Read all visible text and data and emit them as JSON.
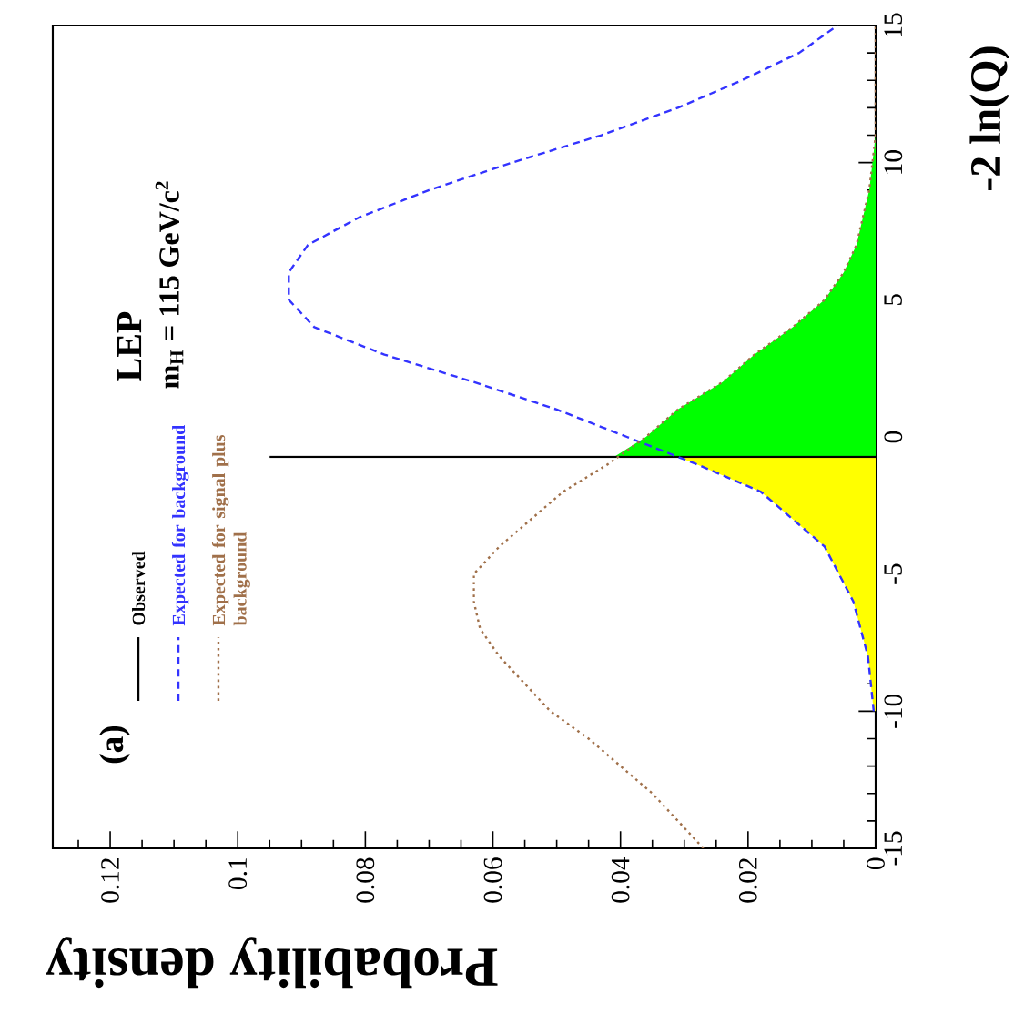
{
  "chart_data": {
    "type": "line",
    "orientation": "horizontal",
    "xlabel": "Probability density",
    "ylabel": "-2 ln(Q)",
    "annotations": [
      "(a)",
      "LEP",
      "m$_{H}$ = 115 GeV/c$^{2}$"
    ],
    "xlim": [
      0.129,
      0
    ],
    "ylim": [
      -15,
      15
    ],
    "xticks": [
      0,
      0.02,
      0.04,
      0.06,
      0.08,
      0.1,
      0.12,
      {
        "value": 0.005,
        "label": null
      },
      {
        "value": 0.01,
        "label": null
      },
      {
        "value": 0.015,
        "label": null
      },
      {
        "value": 0.025,
        "label": null
      },
      {
        "value": 0.03,
        "label": null
      },
      {
        "value": 0.035,
        "label": null
      },
      {
        "value": 0.045,
        "label": null
      },
      {
        "value": 0.05,
        "label": null
      },
      {
        "value": 0.055,
        "label": null
      },
      {
        "value": 0.065,
        "label": null
      },
      {
        "value": 0.07,
        "label": null
      },
      {
        "value": 0.075,
        "label": null
      },
      {
        "value": 0.085,
        "label": null
      },
      {
        "value": 0.09,
        "label": null
      },
      {
        "value": 0.095,
        "label": null
      },
      {
        "value": 0.105,
        "label": null
      },
      {
        "value": 0.11,
        "label": null
      },
      {
        "value": 0.115,
        "label": null
      },
      {
        "value": 0.125,
        "label": null
      }
    ],
    "yticks": [
      -15,
      -10,
      -5,
      0,
      5,
      10,
      15,
      {
        "value": -14,
        "label": null
      },
      {
        "value": -13,
        "label": null
      },
      {
        "value": -12,
        "label": null
      },
      {
        "value": -11,
        "label": null
      },
      {
        "value": -9,
        "label": null
      },
      {
        "value": -8,
        "label": null
      },
      {
        "value": -7,
        "label": null
      },
      {
        "value": -6,
        "label": null
      },
      {
        "value": -4,
        "label": null
      },
      {
        "value": -3,
        "label": null
      },
      {
        "value": -2,
        "label": null
      },
      {
        "value": -1,
        "label": null
      },
      {
        "value": 1,
        "label": null
      },
      {
        "value": 2,
        "label": null
      },
      {
        "value": 3,
        "label": null
      },
      {
        "value": 4,
        "label": null
      },
      {
        "value": 6,
        "label": null
      },
      {
        "value": 7,
        "label": null
      },
      {
        "value": 8,
        "label": null
      },
      {
        "value": 9,
        "label": null
      },
      {
        "value": 11,
        "label": null
      },
      {
        "value": 12,
        "label": null
      },
      {
        "value": 13,
        "label": null
      },
      {
        "value": 14,
        "label": null
      }
    ],
    "legend": "left",
    "series": [
      {
        "type": "area",
        "color": "#00ff00",
        "x": [
          -0.73,
          0,
          1,
          2,
          3,
          4,
          5,
          6,
          7,
          8,
          9,
          10,
          11
        ],
        "values": [
          0.041,
          0.036,
          0.031,
          0.024,
          0.019,
          0.013,
          0.008,
          0.005,
          0.003,
          0.002,
          0.001,
          0.0005,
          0
        ]
      },
      {
        "type": "area",
        "color": "#ffff00",
        "x": [
          -10,
          -8,
          -6,
          -4,
          -2,
          -1,
          -0.73
        ],
        "values": [
          0.0003,
          0.0012,
          0.0035,
          0.008,
          0.018,
          0.028,
          0.031
        ]
      },
      {
        "name": "Observed",
        "color": "#000000",
        "line_style": "solid",
        "x": [
          -0.73,
          -0.73
        ],
        "values": [
          0,
          0.095
        ]
      },
      {
        "name": "Expected for background",
        "color": "#3333ff",
        "line_style": "dashed",
        "x": [
          -10,
          -8,
          -6,
          -4,
          -2,
          -1,
          0,
          1,
          2,
          3,
          4,
          5,
          6,
          7,
          8,
          9,
          10,
          11,
          12,
          13,
          14,
          15
        ],
        "values": [
          0.0003,
          0.0012,
          0.0035,
          0.008,
          0.018,
          0.028,
          0.039,
          0.05,
          0.063,
          0.077,
          0.088,
          0.092,
          0.092,
          0.089,
          0.081,
          0.07,
          0.057,
          0.043,
          0.031,
          0.021,
          0.012,
          0.006
        ]
      },
      {
        "name": "Expected for signal plus background",
        "color": "#a0704a",
        "line_style": "dotted",
        "x": [
          -15,
          -14,
          -13,
          -12,
          -11,
          -10,
          -9,
          -8,
          -7,
          -6,
          -5,
          -4,
          -3,
          -2,
          -1,
          0,
          1,
          2,
          3,
          4,
          5,
          6,
          7,
          8,
          9,
          10,
          11,
          12,
          13,
          14,
          15
        ],
        "values": [
          0.027,
          0.031,
          0.035,
          0.04,
          0.045,
          0.051,
          0.055,
          0.059,
          0.062,
          0.063,
          0.063,
          0.059,
          0.054,
          0.049,
          0.042,
          0.036,
          0.031,
          0.024,
          0.019,
          0.013,
          0.008,
          0.005,
          0.003,
          0.002,
          0.001,
          0.0005,
          0,
          0,
          0,
          0,
          0
        ]
      }
    ]
  }
}
